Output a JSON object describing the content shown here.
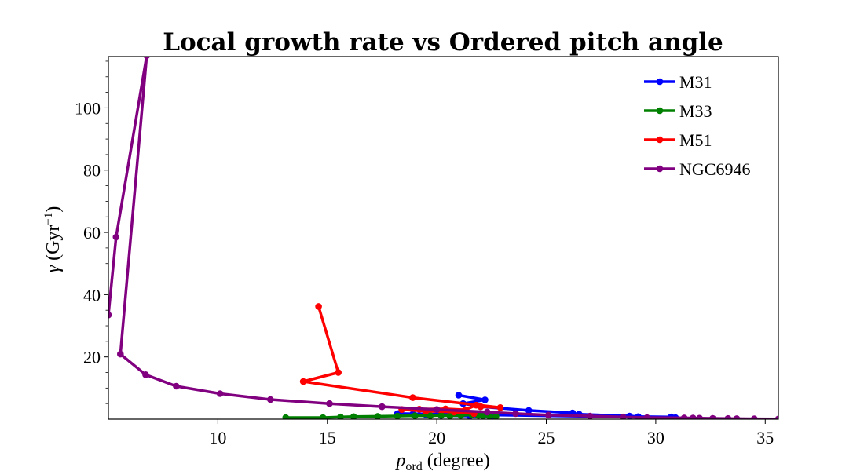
{
  "chart_data": {
    "type": "line",
    "title": "Local growth rate vs Ordered pitch angle",
    "xlabel": {
      "symbol": "p",
      "subscript": "ord",
      "rest": " (degree)"
    },
    "ylabel": {
      "symbol": "γ",
      "rest_before": " (Gyr",
      "superscript": "−1",
      "rest_after": ")"
    },
    "xlim": [
      5,
      35.6
    ],
    "ylim": [
      0,
      116.5
    ],
    "xticks": [
      10,
      15,
      20,
      25,
      30,
      35
    ],
    "yticks": [
      20,
      40,
      60,
      80,
      100
    ],
    "yminor_step": 5,
    "legend_position": "upper right",
    "series": [
      {
        "name": "M31",
        "color": "#0000ff",
        "points": [
          [
            21.0,
            7.7
          ],
          [
            22.2,
            6.2
          ],
          [
            21.2,
            5.0
          ],
          [
            22.0,
            4.0
          ],
          [
            24.2,
            2.8
          ],
          [
            26.2,
            2.0
          ],
          [
            26.5,
            1.6
          ],
          [
            28.8,
            1.0
          ],
          [
            29.2,
            0.8
          ],
          [
            30.7,
            0.7
          ],
          [
            30.9,
            0.5
          ],
          [
            18.2,
            1.8
          ],
          [
            18.9,
            1.6
          ],
          [
            19.5,
            1.4
          ],
          [
            20.2,
            1.2
          ],
          [
            21.5,
            1.0
          ],
          [
            22.5,
            0.8
          ]
        ]
      },
      {
        "name": "M33",
        "color": "#008000",
        "points": [
          [
            13.1,
            0.5
          ],
          [
            14.8,
            0.5
          ],
          [
            15.6,
            0.7
          ],
          [
            16.2,
            0.8
          ],
          [
            17.3,
            0.9
          ],
          [
            18.2,
            1.0
          ],
          [
            19.0,
            1.1
          ],
          [
            19.7,
            1.1
          ],
          [
            20.2,
            1.2
          ],
          [
            20.6,
            1.1
          ],
          [
            21.1,
            1.2
          ],
          [
            21.6,
            1.4
          ],
          [
            21.9,
            1.2
          ],
          [
            22.1,
            1.1
          ],
          [
            22.4,
            1.0
          ],
          [
            22.7,
            0.9
          ]
        ]
      },
      {
        "name": "M51",
        "color": "#ff0000",
        "points": [
          [
            14.6,
            36.2
          ],
          [
            15.5,
            15.0
          ],
          [
            13.9,
            12.1
          ],
          [
            18.9,
            6.9
          ],
          [
            22.9,
            3.7
          ],
          [
            22.0,
            4.0
          ],
          [
            21.8,
            4.5
          ],
          [
            21.3,
            3.0
          ],
          [
            20.4,
            3.3
          ],
          [
            19.2,
            3.2
          ],
          [
            18.4,
            3.1
          ],
          [
            19.5,
            2.6
          ],
          [
            20.8,
            2.3
          ],
          [
            21.7,
            1.8
          ]
        ]
      },
      {
        "name": "NGC6946",
        "color": "#800080",
        "points": [
          [
            5.0,
            33.5
          ],
          [
            5.35,
            58.5
          ],
          [
            6.75,
            116.8
          ],
          [
            5.55,
            20.9
          ],
          [
            6.7,
            14.3
          ],
          [
            8.1,
            10.6
          ],
          [
            10.1,
            8.2
          ],
          [
            12.4,
            6.3
          ],
          [
            15.1,
            5.0
          ],
          [
            17.5,
            4.0
          ],
          [
            20.0,
            3.1
          ],
          [
            22.3,
            2.3
          ],
          [
            23.6,
            1.8
          ],
          [
            25.1,
            1.3
          ],
          [
            27.0,
            1.0
          ],
          [
            28.5,
            0.7
          ],
          [
            29.6,
            0.5
          ],
          [
            31.3,
            0.4
          ],
          [
            31.7,
            0.35
          ],
          [
            32.0,
            0.3
          ],
          [
            32.6,
            0.25
          ],
          [
            33.3,
            0.2
          ],
          [
            33.7,
            0.15
          ],
          [
            34.5,
            0.1
          ],
          [
            35.6,
            0.05
          ]
        ]
      }
    ]
  }
}
